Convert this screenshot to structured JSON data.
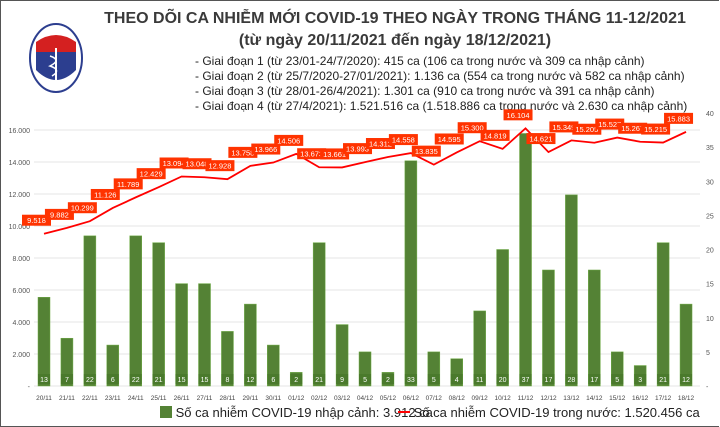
{
  "header": {
    "title": "THEO DÕI CA NHIỄM MỚI COVID-19 THEO NGÀY TRONG THÁNG 11-12/2021",
    "subtitle": "(từ ngày 20/11/2021 đến ngày 18/12/2021)",
    "stages": [
      "- Giai đoạn 1 (từ 23/01-24/7/2020): 415 ca (106 ca trong nước và 309 ca nhập cảnh)",
      "- Giai đoạn 2 (từ 25/7/2020-27/01/2021): 1.136 ca (554 ca trong nước và 582 ca nhập cảnh)",
      "- Giai đoạn 3 (từ 28/01-26/4/2021): 1.301 ca (910 ca trong nước và 391 ca nhập cảnh)",
      "- Giai đoạn 4 (từ 27/4/2021): 1.521.516 ca (1.518.886 ca trong nước và 2.630 ca nhập cảnh)"
    ],
    "logo_text": "BỘ Y TẾ"
  },
  "chart_data": {
    "type": "bar+line",
    "categories": [
      "20/11",
      "21/11",
      "22/11",
      "23/11",
      "24/11",
      "25/11",
      "26/11",
      "27/11",
      "28/11",
      "29/11",
      "30/11",
      "01/12",
      "02/12",
      "03/12",
      "04/12",
      "05/12",
      "06/12",
      "07/12",
      "08/12",
      "09/12",
      "10/12",
      "11/12",
      "12/12",
      "13/12",
      "14/12",
      "15/12",
      "16/12",
      "17/12",
      "18/12"
    ],
    "series": [
      {
        "name": "Số ca nhiễm COVID-19 nhập cảnh: 3.912 ca",
        "type": "bar",
        "axis": "right",
        "color": "#548235",
        "values": [
          13,
          7,
          22,
          6,
          22,
          21,
          15,
          15,
          8,
          12,
          6,
          2,
          21,
          9,
          5,
          2,
          33,
          5,
          4,
          11,
          20,
          37,
          17,
          28,
          17,
          5,
          3,
          21,
          12
        ],
        "labels": [
          "13",
          "7",
          "22",
          "6",
          "22",
          "21",
          "15",
          "15",
          "8",
          "12",
          "6",
          "2",
          "21",
          "9",
          "5",
          "2",
          "33",
          "5",
          "4",
          "11",
          "20",
          "37",
          "17",
          "28",
          "17",
          "5",
          "3",
          "21",
          "12"
        ]
      },
      {
        "name": "Số ca nhiễm COVID-19 trong nước: 1.520.456 ca",
        "type": "line",
        "axis": "left",
        "color": "#ff0000",
        "values": [
          9518,
          9882,
          10299,
          11126,
          11789,
          12429,
          13094,
          13048,
          12928,
          13758,
          13966,
          14506,
          13673,
          13661,
          13993,
          14312,
          14558,
          13835,
          14595,
          15300,
          14819,
          16104,
          14621,
          15349,
          15205,
          15527,
          15267,
          15215,
          15883
        ],
        "labels": [
          "9.518",
          "9.882",
          "10.299",
          "11.126",
          "11.789",
          "12.429",
          "13.094",
          "13.048",
          "12.928",
          "13.758",
          "13.966",
          "14.506",
          "13.673",
          "13.661",
          "13.993",
          "14.312",
          "14.558",
          "13.835",
          "14.595",
          "15.300",
          "14.819",
          "16.104",
          "14.621",
          "15.349",
          "15.205",
          "15.527",
          "15.267",
          "15.215",
          "15.883"
        ]
      }
    ],
    "left_axis": {
      "range": [
        0,
        16000
      ],
      "ticks": [
        "-",
        "2.000",
        "4.000",
        "6.000",
        "8.000",
        "10.000",
        "12.000",
        "14.000",
        "16.000"
      ]
    },
    "right_axis": {
      "range": [
        0,
        40
      ],
      "ticks": [
        "-",
        "5",
        "10",
        "15",
        "20",
        "25",
        "30",
        "35",
        "40"
      ]
    },
    "grid": true,
    "legend": "bottom",
    "label_box_color": "#ff3300"
  }
}
